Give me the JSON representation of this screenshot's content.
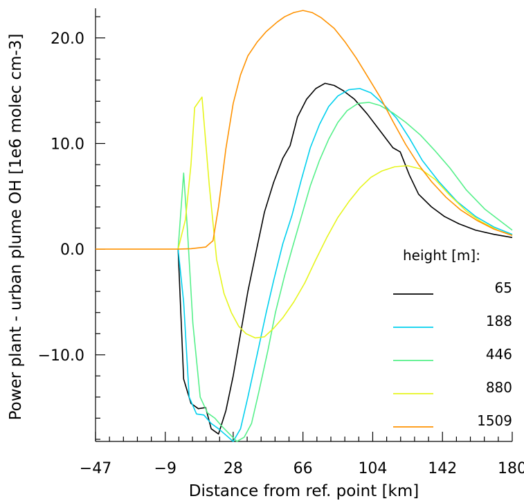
{
  "chart_data": {
    "type": "line",
    "xlabel": "Distance from ref. point [km]",
    "ylabel": "Power plant - urban plume OH [1e6 molec cm-3]",
    "xlim": [
      -47,
      180
    ],
    "ylim": [
      -18.2,
      22.8
    ],
    "xticks": [
      -47,
      -9,
      28,
      66,
      104,
      142,
      180
    ],
    "yticks": [
      {
        "value": 20,
        "label": "20.0"
      },
      {
        "value": 10,
        "label": "10.0"
      },
      {
        "value": 0,
        "label": "0.0"
      },
      {
        "value": -10,
        "label": "-10.0"
      }
    ],
    "legend": {
      "title": "height [m]:",
      "placement": "right"
    },
    "series": [
      {
        "name": "65",
        "color": "#000000",
        "points": [
          [
            -2,
            0
          ],
          [
            1,
            -12.3
          ],
          [
            5,
            -14.6
          ],
          [
            9,
            -15.1
          ],
          [
            13,
            -15
          ],
          [
            16,
            -17
          ],
          [
            20,
            -17.5
          ],
          [
            24,
            -15.3
          ],
          [
            28,
            -12
          ],
          [
            32,
            -8
          ],
          [
            36,
            -4
          ],
          [
            41,
            0.2
          ],
          [
            45,
            3.5
          ],
          [
            50,
            6.3
          ],
          [
            55,
            8.6
          ],
          [
            59,
            9.8
          ],
          [
            63,
            12.5
          ],
          [
            68,
            14.2
          ],
          [
            73,
            15.2
          ],
          [
            78,
            15.7
          ],
          [
            83,
            15.5
          ],
          [
            88,
            15
          ],
          [
            94,
            14.2
          ],
          [
            101,
            12.8
          ],
          [
            108,
            11.2
          ],
          [
            115,
            9.6
          ],
          [
            119,
            9.2
          ],
          [
            124,
            7
          ],
          [
            129,
            5.2
          ],
          [
            136,
            4
          ],
          [
            143,
            3.1
          ],
          [
            151,
            2.4
          ],
          [
            160,
            1.8
          ],
          [
            170,
            1.4
          ],
          [
            180,
            1.1
          ]
        ]
      },
      {
        "name": "188",
        "color": "#00d0ee",
        "points": [
          [
            -2,
            0
          ],
          [
            1,
            -5
          ],
          [
            4,
            -14
          ],
          [
            8,
            -15.6
          ],
          [
            12,
            -15.7
          ],
          [
            16,
            -16.5
          ],
          [
            20,
            -17
          ],
          [
            24,
            -17.6
          ],
          [
            28,
            -18.2
          ],
          [
            32,
            -17
          ],
          [
            36,
            -14
          ],
          [
            41,
            -10
          ],
          [
            46,
            -6
          ],
          [
            50,
            -3
          ],
          [
            55,
            0.5
          ],
          [
            60,
            3.2
          ],
          [
            65,
            6.5
          ],
          [
            70,
            9.6
          ],
          [
            75,
            11.8
          ],
          [
            80,
            13.5
          ],
          [
            85,
            14.5
          ],
          [
            91,
            15.1
          ],
          [
            97,
            15.2
          ],
          [
            103,
            14.8
          ],
          [
            110,
            13.7
          ],
          [
            117,
            12.4
          ],
          [
            124,
            10.5
          ],
          [
            131,
            8.4
          ],
          [
            140,
            6.4
          ],
          [
            150,
            4.5
          ],
          [
            160,
            3.1
          ],
          [
            170,
            2.1
          ],
          [
            180,
            1.4
          ]
        ]
      },
      {
        "name": "446",
        "color": "#55f08a",
        "points": [
          [
            -2,
            0
          ],
          [
            1,
            7.2
          ],
          [
            3,
            2
          ],
          [
            6,
            -7
          ],
          [
            10,
            -14
          ],
          [
            14,
            -15.5
          ],
          [
            18,
            -16
          ],
          [
            22,
            -16.8
          ],
          [
            26,
            -17.5
          ],
          [
            30,
            -18.2
          ],
          [
            34,
            -17.8
          ],
          [
            38,
            -16.5
          ],
          [
            42,
            -13.5
          ],
          [
            47,
            -9.5
          ],
          [
            51,
            -6
          ],
          [
            56,
            -2.5
          ],
          [
            60,
            0
          ],
          [
            65,
            3
          ],
          [
            70,
            6
          ],
          [
            75,
            8.4
          ],
          [
            80,
            10.4
          ],
          [
            85,
            12
          ],
          [
            90,
            13.1
          ],
          [
            96,
            13.8
          ],
          [
            102,
            13.9
          ],
          [
            108,
            13.6
          ],
          [
            115,
            12.9
          ],
          [
            122,
            12
          ],
          [
            130,
            10.8
          ],
          [
            138,
            9.3
          ],
          [
            146,
            7.7
          ],
          [
            155,
            5.6
          ],
          [
            165,
            3.8
          ],
          [
            180,
            1.8
          ]
        ]
      },
      {
        "name": "880",
        "color": "#e6f51c",
        "points": [
          [
            -2,
            0
          ],
          [
            2,
            2.8
          ],
          [
            5,
            8
          ],
          [
            7,
            13.4
          ],
          [
            11,
            14.4
          ],
          [
            15,
            6
          ],
          [
            19,
            -1
          ],
          [
            23,
            -4.2
          ],
          [
            27,
            -6
          ],
          [
            31,
            -7.3
          ],
          [
            35,
            -8
          ],
          [
            40,
            -8.4
          ],
          [
            45,
            -8.3
          ],
          [
            50,
            -7.5
          ],
          [
            55,
            -6.5
          ],
          [
            61,
            -5
          ],
          [
            67,
            -3.2
          ],
          [
            73,
            -1
          ],
          [
            79,
            1.1
          ],
          [
            85,
            3
          ],
          [
            91,
            4.5
          ],
          [
            97,
            5.8
          ],
          [
            103,
            6.8
          ],
          [
            109,
            7.4
          ],
          [
            116,
            7.8
          ],
          [
            123,
            7.9
          ],
          [
            130,
            7.6
          ],
          [
            138,
            6.6
          ],
          [
            146,
            5.1
          ],
          [
            155,
            3.6
          ],
          [
            163,
            2.6
          ],
          [
            172,
            1.8
          ],
          [
            180,
            1.3
          ]
        ]
      },
      {
        "name": "1509",
        "color": "#ff9200",
        "points": [
          [
            -47,
            0
          ],
          [
            -30,
            0
          ],
          [
            -15,
            0
          ],
          [
            -2,
            0
          ],
          [
            5,
            0.05
          ],
          [
            13,
            0.2
          ],
          [
            17,
            0.8
          ],
          [
            20,
            4
          ],
          [
            24,
            9.5
          ],
          [
            28,
            13.8
          ],
          [
            32,
            16.5
          ],
          [
            36,
            18.3
          ],
          [
            41,
            19.6
          ],
          [
            46,
            20.6
          ],
          [
            52,
            21.5
          ],
          [
            56,
            22
          ],
          [
            61,
            22.4
          ],
          [
            66,
            22.6
          ],
          [
            71,
            22.4
          ],
          [
            76,
            21.9
          ],
          [
            83,
            20.9
          ],
          [
            89,
            19.6
          ],
          [
            95,
            18.1
          ],
          [
            101,
            16.4
          ],
          [
            108,
            14.4
          ],
          [
            115,
            12.1
          ],
          [
            122,
            9.9
          ],
          [
            129,
            8
          ],
          [
            136,
            6.4
          ],
          [
            144,
            4.9
          ],
          [
            152,
            3.7
          ],
          [
            161,
            2.7
          ],
          [
            170,
            1.9
          ],
          [
            180,
            1.3
          ]
        ]
      }
    ]
  }
}
